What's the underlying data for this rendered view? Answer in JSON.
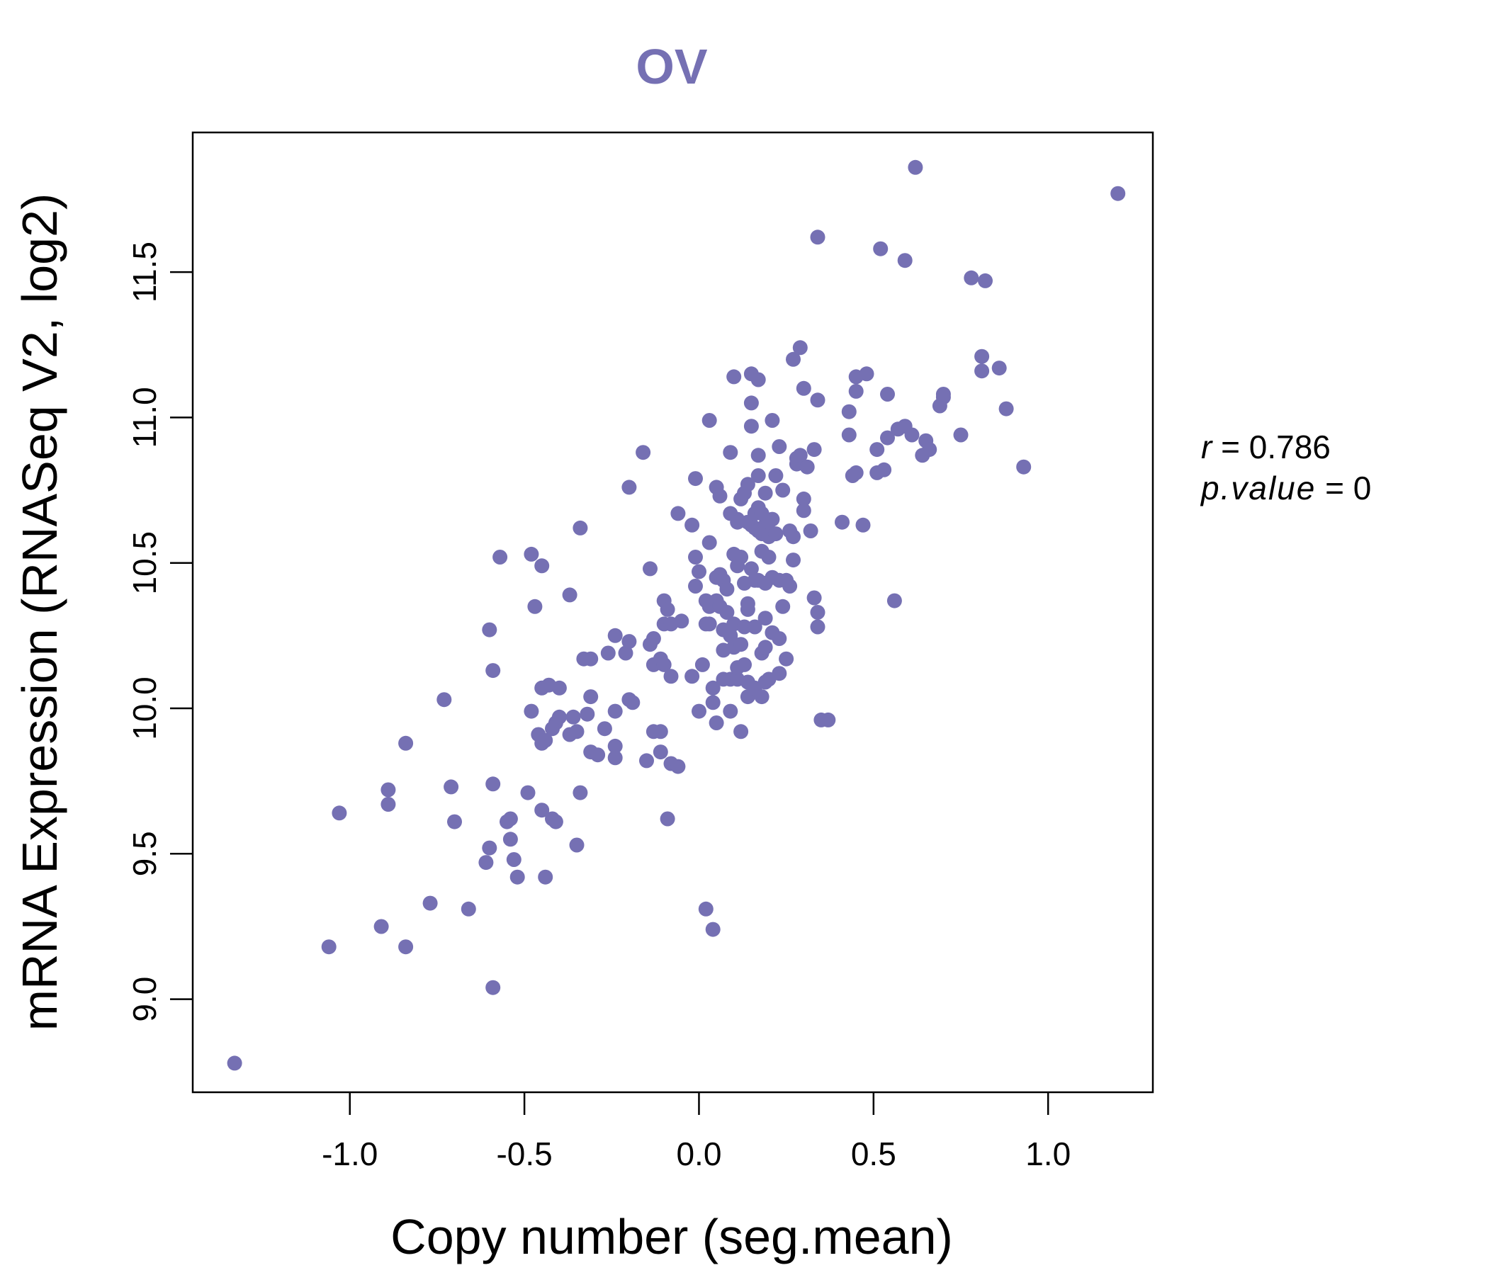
{
  "chart_data": {
    "type": "scatter",
    "title": "OV",
    "xlabel": "Copy number (seg.mean)",
    "ylabel": "mRNA Expression (RNASeq V2, log2)",
    "xlim": [
      -1.45,
      1.3
    ],
    "ylim": [
      8.68,
      11.98
    ],
    "xticks": [
      "-1.0",
      "-0.5",
      "0.0",
      "0.5",
      "1.0"
    ],
    "yticks": [
      "9.0",
      "9.5",
      "10.0",
      "10.5",
      "11.0",
      "11.5"
    ],
    "grid": false,
    "legend": "none",
    "point_color": "#7570b3",
    "stats": {
      "r_label": "r",
      "r_value": "0.786",
      "p_label": "p.value",
      "p_value": "0"
    },
    "points": [
      [
        -1.33,
        8.78
      ],
      [
        -1.06,
        9.18
      ],
      [
        -0.91,
        9.25
      ],
      [
        -0.84,
        9.18
      ],
      [
        -0.77,
        9.33
      ],
      [
        -0.66,
        9.31
      ],
      [
        -0.59,
        9.04
      ],
      [
        -1.03,
        9.64
      ],
      [
        -0.89,
        9.72
      ],
      [
        -0.89,
        9.67
      ],
      [
        -0.71,
        9.73
      ],
      [
        -0.7,
        9.61
      ],
      [
        -0.61,
        9.47
      ],
      [
        -0.6,
        9.52
      ],
      [
        -0.59,
        9.74
      ],
      [
        -0.55,
        9.61
      ],
      [
        -0.54,
        9.62
      ],
      [
        -0.54,
        9.55
      ],
      [
        -0.53,
        9.48
      ],
      [
        -0.52,
        9.42
      ],
      [
        -0.49,
        9.71
      ],
      [
        -0.45,
        9.65
      ],
      [
        -0.44,
        9.42
      ],
      [
        -0.42,
        9.62
      ],
      [
        -0.41,
        9.61
      ],
      [
        -0.35,
        9.53
      ],
      [
        -0.34,
        9.71
      ],
      [
        -0.84,
        9.88
      ],
      [
        -0.73,
        10.03
      ],
      [
        -0.6,
        10.27
      ],
      [
        -0.59,
        10.13
      ],
      [
        -0.57,
        10.52
      ],
      [
        -0.48,
        10.53
      ],
      [
        -0.47,
        10.35
      ],
      [
        -0.45,
        10.49
      ],
      [
        -0.37,
        10.39
      ],
      [
        -0.34,
        10.62
      ],
      [
        -0.48,
        9.99
      ],
      [
        -0.46,
        9.91
      ],
      [
        -0.45,
        9.88
      ],
      [
        -0.44,
        9.89
      ],
      [
        -0.45,
        10.07
      ],
      [
        -0.43,
        10.08
      ],
      [
        -0.42,
        9.93
      ],
      [
        -0.41,
        9.95
      ],
      [
        -0.4,
        9.97
      ],
      [
        -0.4,
        10.07
      ],
      [
        -0.37,
        9.91
      ],
      [
        -0.36,
        9.97
      ],
      [
        -0.35,
        9.92
      ],
      [
        -0.33,
        10.17
      ],
      [
        -0.32,
        9.98
      ],
      [
        -0.31,
        9.85
      ],
      [
        -0.31,
        10.04
      ],
      [
        -0.31,
        10.17
      ],
      [
        -0.29,
        9.84
      ],
      [
        -0.27,
        9.93
      ],
      [
        -0.26,
        10.19
      ],
      [
        -0.24,
        10.25
      ],
      [
        -0.24,
        9.87
      ],
      [
        -0.24,
        9.83
      ],
      [
        -0.24,
        9.99
      ],
      [
        -0.21,
        10.19
      ],
      [
        -0.2,
        10.23
      ],
      [
        -0.2,
        10.03
      ],
      [
        -0.19,
        10.02
      ],
      [
        -0.2,
        10.76
      ],
      [
        -0.16,
        10.88
      ],
      [
        -0.15,
        9.82
      ],
      [
        -0.14,
        10.22
      ],
      [
        -0.14,
        10.48
      ],
      [
        -0.13,
        10.24
      ],
      [
        -0.13,
        10.15
      ],
      [
        -0.13,
        9.92
      ],
      [
        -0.11,
        9.92
      ],
      [
        -0.11,
        10.17
      ],
      [
        -0.11,
        9.85
      ],
      [
        -0.1,
        10.37
      ],
      [
        -0.1,
        10.29
      ],
      [
        -0.1,
        10.15
      ],
      [
        -0.09,
        9.62
      ],
      [
        -0.09,
        10.34
      ],
      [
        -0.08,
        10.29
      ],
      [
        -0.08,
        10.11
      ],
      [
        -0.08,
        9.81
      ],
      [
        -0.06,
        9.8
      ],
      [
        -0.06,
        10.67
      ],
      [
        -0.05,
        10.3
      ],
      [
        -0.02,
        10.63
      ],
      [
        -0.02,
        10.11
      ],
      [
        -0.01,
        10.42
      ],
      [
        -0.01,
        10.52
      ],
      [
        -0.01,
        10.79
      ],
      [
        0.0,
        9.99
      ],
      [
        0.0,
        10.47
      ],
      [
        0.01,
        10.15
      ],
      [
        0.02,
        10.29
      ],
      [
        0.02,
        10.37
      ],
      [
        0.03,
        10.35
      ],
      [
        0.03,
        10.57
      ],
      [
        0.03,
        10.99
      ],
      [
        0.03,
        10.29
      ],
      [
        0.04,
        10.07
      ],
      [
        0.04,
        10.02
      ],
      [
        0.05,
        9.95
      ],
      [
        0.05,
        10.37
      ],
      [
        0.05,
        10.45
      ],
      [
        0.05,
        10.76
      ],
      [
        0.06,
        10.73
      ],
      [
        0.06,
        10.35
      ],
      [
        0.06,
        10.46
      ],
      [
        0.07,
        10.44
      ],
      [
        0.07,
        10.27
      ],
      [
        0.07,
        10.2
      ],
      [
        0.07,
        10.1
      ],
      [
        0.08,
        10.33
      ],
      [
        0.08,
        10.41
      ],
      [
        0.09,
        9.99
      ],
      [
        0.09,
        10.25
      ],
      [
        0.09,
        10.1
      ],
      [
        0.09,
        10.88
      ],
      [
        0.09,
        10.67
      ],
      [
        0.1,
        10.29
      ],
      [
        0.1,
        10.53
      ],
      [
        0.1,
        10.21
      ],
      [
        0.1,
        11.14
      ],
      [
        0.11,
        10.1
      ],
      [
        0.11,
        10.65
      ],
      [
        0.11,
        10.49
      ],
      [
        0.11,
        10.14
      ],
      [
        0.11,
        10.64
      ],
      [
        0.12,
        10.72
      ],
      [
        0.12,
        9.92
      ],
      [
        0.12,
        10.52
      ],
      [
        0.12,
        10.22
      ],
      [
        0.13,
        10.15
      ],
      [
        0.13,
        10.28
      ],
      [
        0.13,
        10.43
      ],
      [
        0.13,
        10.74
      ],
      [
        0.14,
        10.64
      ],
      [
        0.14,
        10.09
      ],
      [
        0.14,
        10.04
      ],
      [
        0.14,
        10.34
      ],
      [
        0.14,
        10.36
      ],
      [
        0.14,
        10.77
      ],
      [
        0.15,
        10.48
      ],
      [
        0.15,
        10.63
      ],
      [
        0.15,
        10.97
      ],
      [
        0.15,
        11.05
      ],
      [
        0.15,
        11.15
      ],
      [
        0.16,
        10.07
      ],
      [
        0.16,
        10.28
      ],
      [
        0.16,
        10.44
      ],
      [
        0.16,
        10.67
      ],
      [
        0.16,
        10.62
      ],
      [
        0.17,
        10.44
      ],
      [
        0.17,
        10.61
      ],
      [
        0.17,
        10.69
      ],
      [
        0.17,
        10.87
      ],
      [
        0.17,
        10.8
      ],
      [
        0.17,
        11.13
      ],
      [
        0.18,
        10.04
      ],
      [
        0.18,
        10.19
      ],
      [
        0.18,
        10.6
      ],
      [
        0.18,
        10.67
      ],
      [
        0.18,
        10.54
      ],
      [
        0.19,
        10.09
      ],
      [
        0.19,
        10.31
      ],
      [
        0.19,
        10.21
      ],
      [
        0.19,
        10.43
      ],
      [
        0.19,
        10.74
      ],
      [
        0.19,
        10.63
      ],
      [
        0.2,
        10.1
      ],
      [
        0.2,
        10.64
      ],
      [
        0.2,
        10.59
      ],
      [
        0.2,
        10.52
      ],
      [
        0.21,
        10.26
      ],
      [
        0.21,
        10.65
      ],
      [
        0.21,
        10.45
      ],
      [
        0.21,
        10.99
      ],
      [
        0.22,
        10.8
      ],
      [
        0.22,
        10.6
      ],
      [
        0.23,
        10.44
      ],
      [
        0.23,
        10.12
      ],
      [
        0.23,
        10.24
      ],
      [
        0.23,
        10.9
      ],
      [
        0.24,
        10.35
      ],
      [
        0.24,
        10.75
      ],
      [
        0.25,
        10.17
      ],
      [
        0.25,
        10.44
      ],
      [
        0.26,
        10.61
      ],
      [
        0.26,
        10.42
      ],
      [
        0.27,
        10.59
      ],
      [
        0.27,
        10.51
      ],
      [
        0.27,
        11.2
      ],
      [
        0.28,
        10.86
      ],
      [
        0.28,
        10.84
      ],
      [
        0.29,
        11.24
      ],
      [
        0.29,
        10.87
      ],
      [
        0.3,
        10.68
      ],
      [
        0.3,
        10.72
      ],
      [
        0.3,
        11.1
      ],
      [
        0.31,
        10.83
      ],
      [
        0.32,
        10.61
      ],
      [
        0.33,
        10.89
      ],
      [
        0.33,
        10.38
      ],
      [
        0.34,
        10.33
      ],
      [
        0.34,
        10.28
      ],
      [
        0.34,
        11.06
      ],
      [
        0.34,
        11.62
      ],
      [
        0.35,
        9.96
      ],
      [
        0.37,
        9.96
      ],
      [
        0.41,
        10.64
      ],
      [
        0.43,
        11.02
      ],
      [
        0.43,
        10.94
      ],
      [
        0.44,
        10.8
      ],
      [
        0.45,
        11.14
      ],
      [
        0.45,
        11.09
      ],
      [
        0.45,
        10.81
      ],
      [
        0.47,
        10.63
      ],
      [
        0.48,
        11.15
      ],
      [
        0.51,
        10.89
      ],
      [
        0.51,
        10.81
      ],
      [
        0.52,
        11.58
      ],
      [
        0.53,
        10.82
      ],
      [
        0.54,
        10.93
      ],
      [
        0.54,
        11.08
      ],
      [
        0.56,
        10.37
      ],
      [
        0.57,
        10.96
      ],
      [
        0.59,
        10.97
      ],
      [
        0.59,
        11.54
      ],
      [
        0.61,
        10.94
      ],
      [
        0.62,
        11.86
      ],
      [
        0.64,
        10.87
      ],
      [
        0.65,
        10.92
      ],
      [
        0.66,
        10.89
      ],
      [
        0.69,
        11.04
      ],
      [
        0.7,
        11.07
      ],
      [
        0.7,
        11.08
      ],
      [
        0.75,
        10.94
      ],
      [
        0.78,
        11.48
      ],
      [
        0.81,
        11.16
      ],
      [
        0.81,
        11.21
      ],
      [
        0.82,
        11.47
      ],
      [
        0.86,
        11.17
      ],
      [
        0.88,
        11.03
      ],
      [
        0.93,
        10.83
      ],
      [
        1.2,
        11.77
      ],
      [
        0.02,
        9.31
      ],
      [
        0.04,
        9.24
      ]
    ]
  }
}
